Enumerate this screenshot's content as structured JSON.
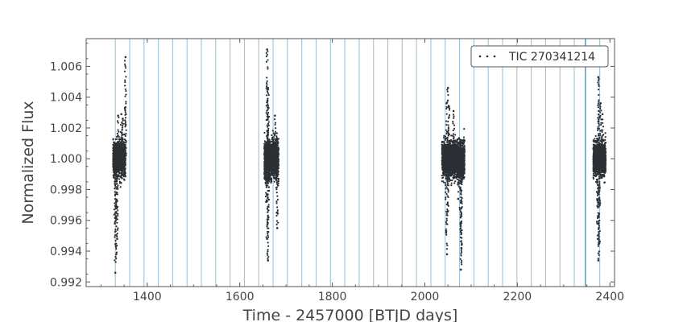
{
  "chart_data": {
    "type": "scatter",
    "title": "",
    "xlabel": "Time - 2457000 [BTJD days]",
    "ylabel": "Normalized Flux",
    "xlim": [
      1268,
      2410
    ],
    "ylim": [
      0.9917,
      1.0078
    ],
    "x_ticks": [
      1400,
      1600,
      1800,
      2000,
      2200,
      2400
    ],
    "x_tick_labels": [
      "1400",
      "1600",
      "1800",
      "2000",
      "2200",
      "2400"
    ],
    "y_ticks": [
      0.992,
      0.994,
      0.996,
      0.998,
      1.0,
      1.002,
      1.004,
      1.006
    ],
    "y_tick_labels": [
      "0.992",
      "0.994",
      "0.996",
      "0.998",
      "1.000",
      "1.002",
      "1.004",
      "1.006"
    ],
    "grid": false,
    "legend_position": "top-right",
    "colors": {
      "points": "#2b3035",
      "vlines": "#9ec3d8",
      "vline_strong": "#5a93b8",
      "frame": "#555555"
    },
    "series": [
      {
        "name": "TIC 270341214",
        "segments": [
          {
            "x_start": 1326,
            "x_end": 1353,
            "y_center": 1.0,
            "y_low": 0.9981,
            "y_high": 1.0022,
            "outliers": [
              {
                "x": 1331,
                "y": 0.9926
              },
              {
                "x": 1333,
                "y": 0.9938
              },
              {
                "x": 1335,
                "y": 0.9948
              },
              {
                "x": 1330,
                "y": 0.9958
              },
              {
                "x": 1334,
                "y": 0.9968
              },
              {
                "x": 1347,
                "y": 1.0026
              },
              {
                "x": 1352,
                "y": 1.0033
              },
              {
                "x": 1337,
                "y": 1.0028
              },
              {
                "x": 1344,
                "y": 1.0029
              },
              {
                "x": 1353,
                "y": 1.0066
              }
            ]
          },
          {
            "x_start": 1653,
            "x_end": 1684,
            "y_center": 1.0,
            "y_low": 0.998,
            "y_high": 1.0025,
            "outliers": [
              {
                "x": 1659,
                "y": 1.0071
              },
              {
                "x": 1661,
                "y": 1.0046
              },
              {
                "x": 1660,
                "y": 1.0038
              },
              {
                "x": 1662,
                "y": 1.0033
              },
              {
                "x": 1661,
                "y": 0.9934
              },
              {
                "x": 1659,
                "y": 0.9948
              },
              {
                "x": 1662,
                "y": 0.9962
              },
              {
                "x": 1657,
                "y": 0.9972
              },
              {
                "x": 1681,
                "y": 0.9955
              },
              {
                "x": 1680,
                "y": 0.9965
              },
              {
                "x": 1676,
                "y": 1.0028
              }
            ]
          },
          {
            "x_start": 2037,
            "x_end": 2086,
            "y_center": 1.0,
            "y_low": 0.998,
            "y_high": 1.0024,
            "outliers": [
              {
                "x": 2050,
                "y": 1.0046
              },
              {
                "x": 2047,
                "y": 1.0036
              },
              {
                "x": 2052,
                "y": 1.0034
              },
              {
                "x": 2062,
                "y": 1.0031
              },
              {
                "x": 2048,
                "y": 0.9938
              },
              {
                "x": 2046,
                "y": 0.9952
              },
              {
                "x": 2050,
                "y": 0.9966
              },
              {
                "x": 2078,
                "y": 0.9928
              },
              {
                "x": 2079,
                "y": 0.9942
              },
              {
                "x": 2077,
                "y": 0.9958
              },
              {
                "x": 2072,
                "y": 0.9974
              }
            ]
          },
          {
            "x_start": 2364,
            "x_end": 2391,
            "y_center": 1.0,
            "y_low": 0.998,
            "y_high": 1.0022,
            "outliers": [
              {
                "x": 2375,
                "y": 1.0053
              },
              {
                "x": 2380,
                "y": 1.0036
              },
              {
                "x": 2376,
                "y": 1.0031
              },
              {
                "x": 2384,
                "y": 1.0029
              },
              {
                "x": 2375,
                "y": 0.9934
              },
              {
                "x": 2377,
                "y": 0.9945
              },
              {
                "x": 2373,
                "y": 0.9958
              },
              {
                "x": 2378,
                "y": 0.997
              }
            ]
          }
        ]
      }
    ],
    "vertical_lines": [
      1331,
      1362,
      1393,
      1424,
      1455,
      1486,
      1517,
      1548,
      1579,
      1610,
      1641,
      1672,
      1703,
      1734,
      1765,
      1796,
      1827,
      1858,
      1889,
      1920,
      1951,
      1982,
      2013,
      2044,
      2075,
      2106,
      2137,
      2168,
      2199,
      2230,
      2261,
      2292,
      2323,
      2347,
      2378
    ],
    "vertical_line_strong": [
      2347
    ]
  }
}
